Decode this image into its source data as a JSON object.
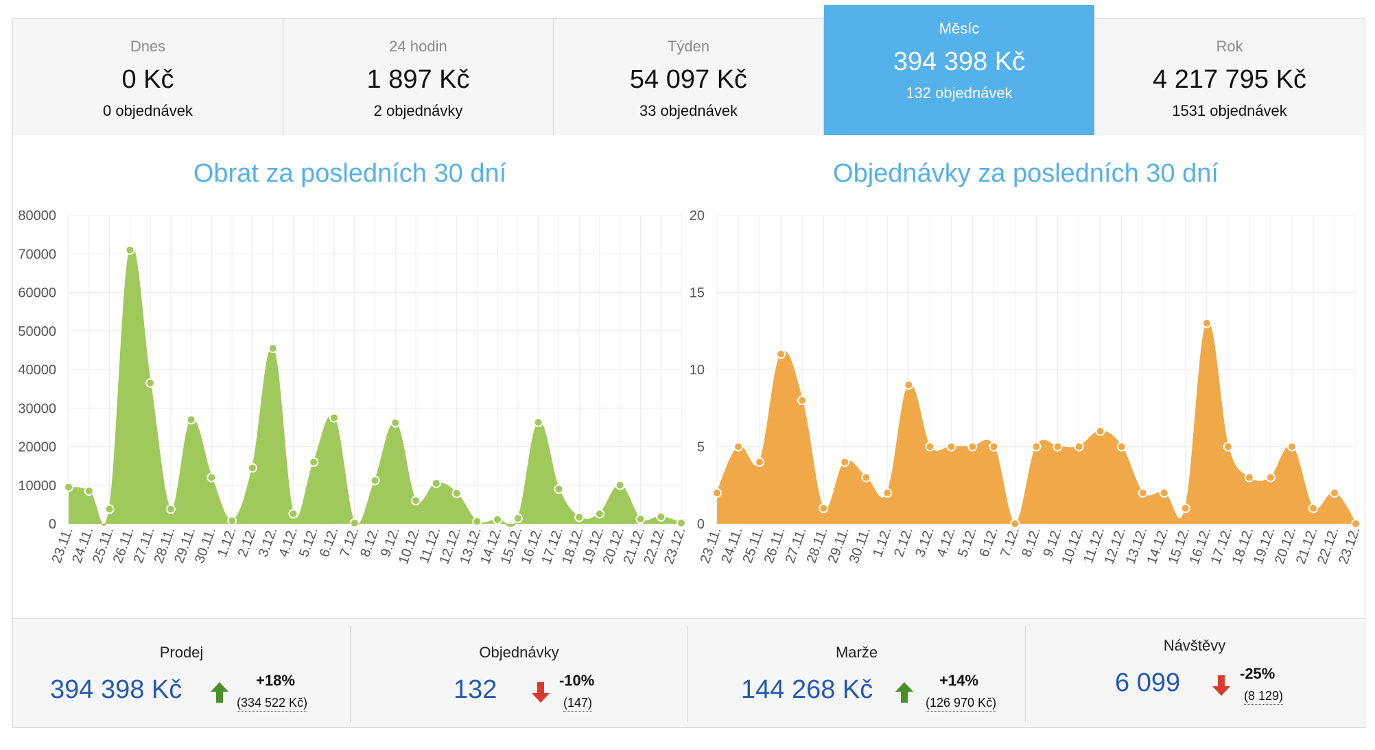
{
  "tabs": [
    {
      "label": "Dnes",
      "value": "0 Kč",
      "count": "0 objednávek",
      "active": false
    },
    {
      "label": "24 hodin",
      "value": "1 897 Kč",
      "count": "2 objednávky",
      "active": false
    },
    {
      "label": "Týden",
      "value": "54 097 Kč",
      "count": "33 objednávek",
      "active": false
    },
    {
      "label": "Měsíc",
      "value": "394 398 Kč",
      "count": "132 objednávek",
      "active": true
    },
    {
      "label": "Rok",
      "value": "4 217 795 Kč",
      "count": "1531 objednávek",
      "active": false
    }
  ],
  "colors": {
    "accent": "#54b1ea",
    "revenue": "#a0c95b",
    "orders": "#f0a848",
    "value_blue": "#2358b4",
    "up": "#4a8f2a",
    "down": "#d93a2b"
  },
  "chart_data": [
    {
      "type": "area",
      "title": "Obrat za posledních 30 dní",
      "x": [
        "23.11.",
        "24.11.",
        "25.11.",
        "26.11.",
        "27.11.",
        "28.11.",
        "29.11.",
        "30.11.",
        "1.12.",
        "2.12.",
        "3.12.",
        "4.12.",
        "5.12.",
        "6.12.",
        "7.12.",
        "8.12.",
        "9.12.",
        "10.12.",
        "11.12.",
        "12.12.",
        "13.12.",
        "14.12.",
        "15.12.",
        "16.12.",
        "17.12.",
        "18.12.",
        "19.12.",
        "20.12.",
        "21.12.",
        "22.12.",
        "23.12."
      ],
      "series": [
        {
          "values": [
            9500,
            8500,
            3800,
            71000,
            36500,
            3800,
            27000,
            12000,
            800,
            14500,
            45500,
            2600,
            16000,
            27500,
            200,
            11200,
            26200,
            6000,
            10500,
            7900,
            600,
            1100,
            1400,
            26300,
            9000,
            1700,
            2600,
            10000,
            1200,
            1800,
            200
          ]
        }
      ],
      "ylim": [
        0,
        80000
      ],
      "yticks": [
        0,
        10000,
        20000,
        30000,
        40000,
        50000,
        60000,
        70000,
        80000
      ],
      "grid": true,
      "color": "#a0c95b"
    },
    {
      "type": "area",
      "title": "Objednávky za posledních 30 dní",
      "x": [
        "23.11.",
        "24.11.",
        "25.11.",
        "26.11.",
        "27.11.",
        "28.11.",
        "29.11.",
        "30.11.",
        "1.12.",
        "2.12.",
        "3.12.",
        "4.12.",
        "5.12.",
        "6.12.",
        "7.12.",
        "8.12.",
        "9.12.",
        "10.12.",
        "11.12.",
        "12.12.",
        "13.12.",
        "14.12.",
        "15.12.",
        "16.12.",
        "17.12.",
        "18.12.",
        "19.12.",
        "20.12.",
        "21.12.",
        "22.12.",
        "23.12."
      ],
      "series": [
        {
          "values": [
            2,
            5,
            4,
            11,
            8,
            1,
            4,
            3,
            2,
            9,
            5,
            5,
            5,
            5,
            0,
            5,
            5,
            5,
            6,
            5,
            2,
            2,
            1,
            13,
            5,
            3,
            3,
            5,
            1,
            2,
            0
          ]
        }
      ],
      "ylim": [
        0,
        20
      ],
      "yticks": [
        0,
        5,
        10,
        15,
        20
      ],
      "grid": true,
      "color": "#f0a848"
    }
  ],
  "stats": [
    {
      "label": "Prodej",
      "value": "394 398 Kč",
      "trend": "up",
      "pct": "+18%",
      "prev": "(334 522 Kč)"
    },
    {
      "label": "Objednávky",
      "value": "132",
      "trend": "down",
      "pct": "-10%",
      "prev": "(147)"
    },
    {
      "label": "Marže",
      "value": "144 268 Kč",
      "trend": "up",
      "pct": "+14%",
      "prev": "(126 970 Kč)"
    },
    {
      "label": "Návštěvy",
      "value": "6 099",
      "trend": "down",
      "pct": "-25%",
      "prev": "(8 129)"
    }
  ]
}
